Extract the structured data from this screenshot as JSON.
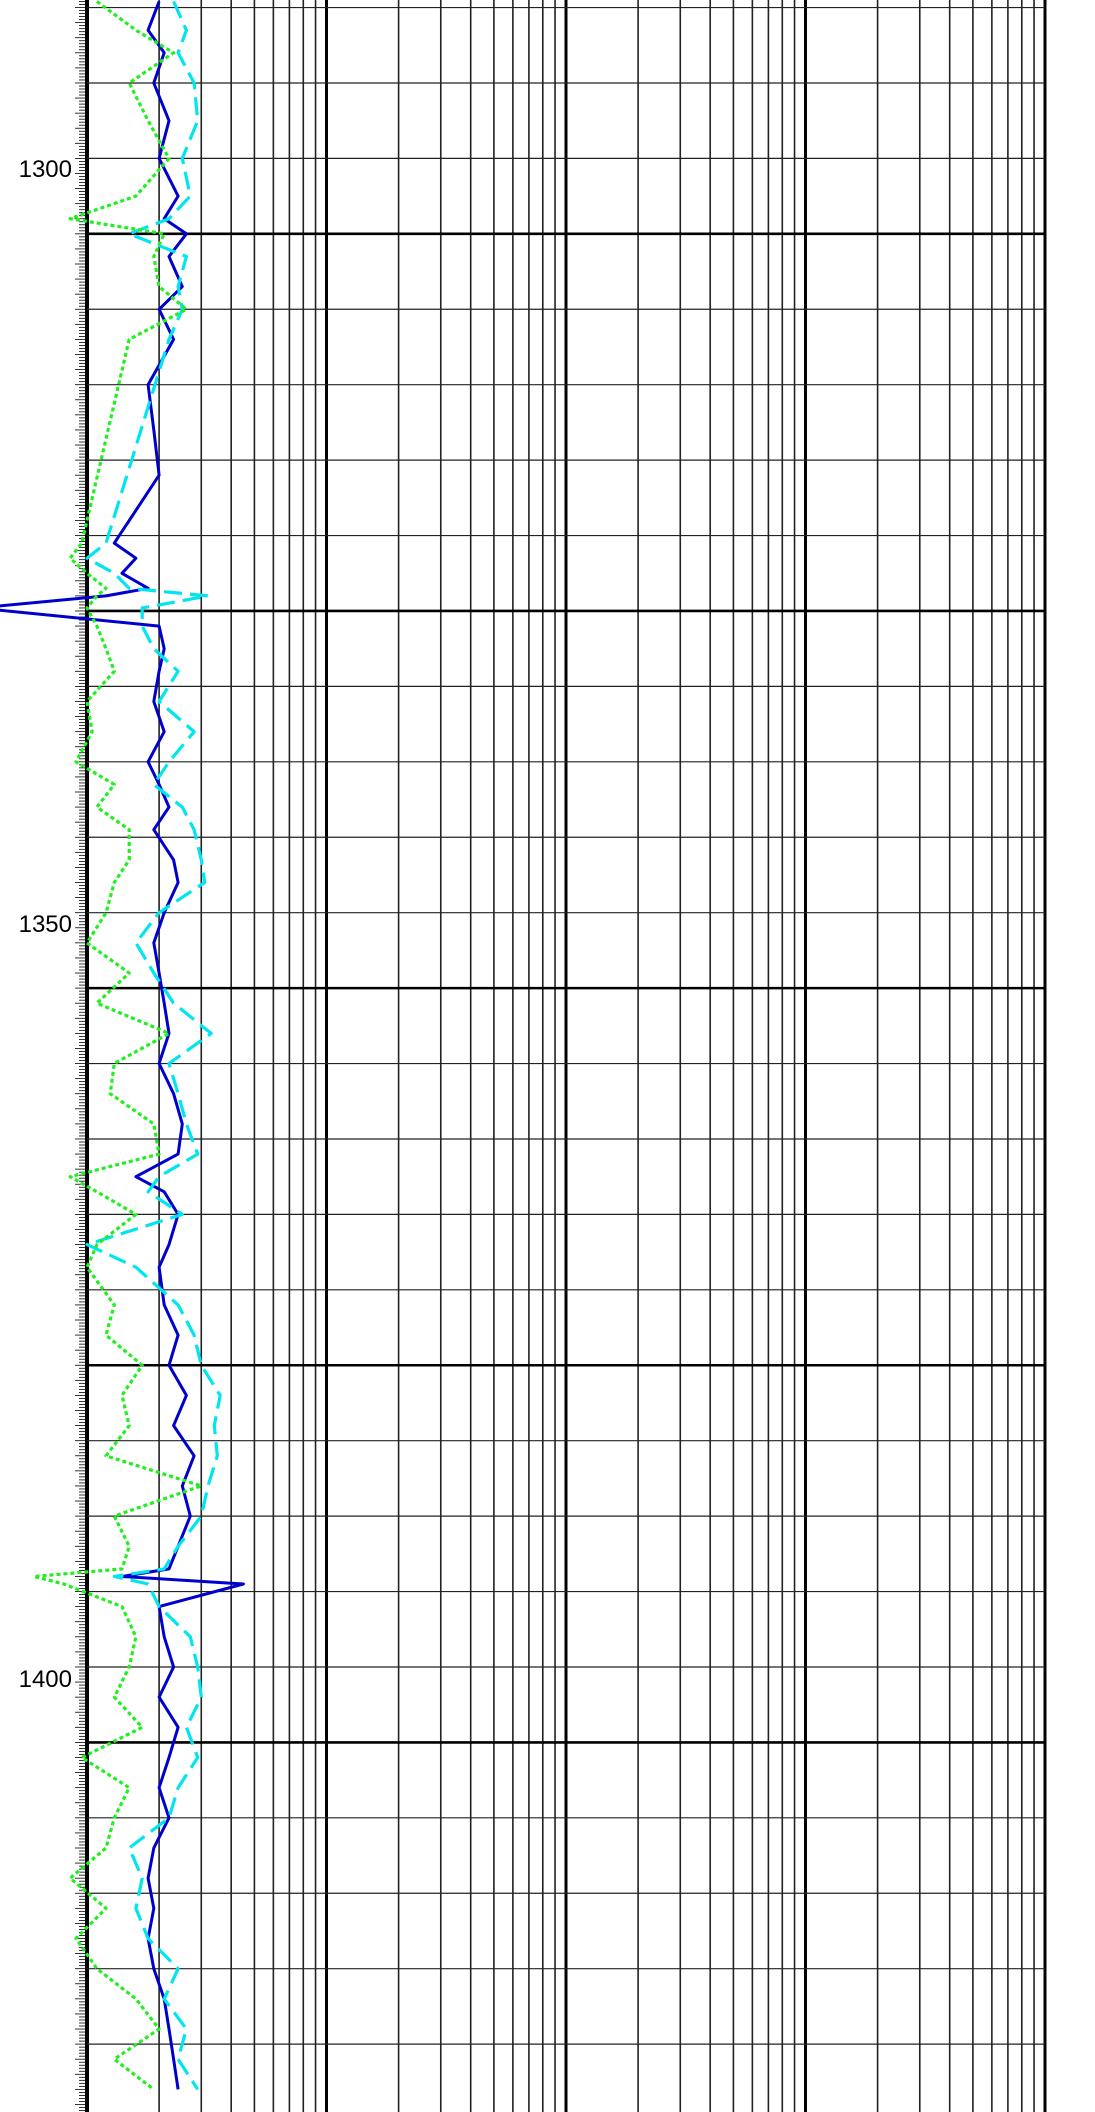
{
  "chart_data": {
    "type": "line",
    "title": "",
    "xlabel": "",
    "ylabel": "",
    "y_axis": "depth",
    "y_inverted": true,
    "ylim": [
      1284.5,
      1424.5
    ],
    "x_scale": "log",
    "decades": 4,
    "y_ticks": [
      1300,
      1350,
      1400
    ],
    "y_tick_labels": [
      "1300",
      "1350",
      "1400"
    ],
    "grid": true,
    "legend": "none",
    "series": [
      {
        "color": "#0000cc",
        "style": "solid",
        "points": [
          [
            1284.6,
            2.0
          ],
          [
            1286.5,
            1.8
          ],
          [
            1288.0,
            2.1
          ],
          [
            1290.0,
            1.9
          ],
          [
            1292.5,
            2.2
          ],
          [
            1295.0,
            2.0
          ],
          [
            1297.5,
            2.4
          ],
          [
            1299.0,
            2.1
          ],
          [
            1300.0,
            2.6
          ],
          [
            1301.5,
            2.2
          ],
          [
            1303.5,
            2.5
          ],
          [
            1305.0,
            2.0
          ],
          [
            1307.0,
            2.3
          ],
          [
            1310.0,
            1.8
          ],
          [
            1313.0,
            1.9
          ],
          [
            1316.0,
            2.0
          ],
          [
            1320.5,
            1.3
          ],
          [
            1321.5,
            1.6
          ],
          [
            1322.5,
            1.4
          ],
          [
            1323.5,
            1.8
          ],
          [
            1324.0,
            1.2
          ],
          [
            1324.8,
            0.35
          ],
          [
            1326.0,
            2.0
          ],
          [
            1327.5,
            2.1
          ],
          [
            1329.0,
            2.0
          ],
          [
            1331.0,
            1.9
          ],
          [
            1333.0,
            2.1
          ],
          [
            1335.0,
            1.8
          ],
          [
            1336.5,
            2.0
          ],
          [
            1338.0,
            2.2
          ],
          [
            1339.5,
            1.9
          ],
          [
            1341.5,
            2.3
          ],
          [
            1343.0,
            2.4
          ],
          [
            1345.0,
            2.1
          ],
          [
            1347.0,
            1.9
          ],
          [
            1349.0,
            2.0
          ],
          [
            1351.0,
            2.1
          ],
          [
            1353.0,
            2.2
          ],
          [
            1355.0,
            2.0
          ],
          [
            1357.0,
            2.3
          ],
          [
            1359.0,
            2.5
          ],
          [
            1361.0,
            2.4
          ],
          [
            1362.5,
            1.6
          ],
          [
            1363.5,
            2.1
          ],
          [
            1365.0,
            2.4
          ],
          [
            1367.0,
            2.2
          ],
          [
            1368.5,
            2.0
          ],
          [
            1371.0,
            2.1
          ],
          [
            1373.0,
            2.4
          ],
          [
            1375.0,
            2.2
          ],
          [
            1377.0,
            2.6
          ],
          [
            1379.0,
            2.3
          ],
          [
            1381.0,
            2.8
          ],
          [
            1383.0,
            2.5
          ],
          [
            1385.0,
            2.7
          ],
          [
            1387.0,
            2.4
          ],
          [
            1388.5,
            2.2
          ],
          [
            1389.0,
            1.4
          ],
          [
            1389.5,
            4.5
          ],
          [
            1391.0,
            2.0
          ],
          [
            1393.0,
            2.1
          ],
          [
            1395.0,
            2.3
          ],
          [
            1397.0,
            2.0
          ],
          [
            1399.0,
            2.4
          ],
          [
            1401.0,
            2.2
          ],
          [
            1403.0,
            2.0
          ],
          [
            1405.0,
            2.2
          ],
          [
            1407.0,
            1.9
          ],
          [
            1409.0,
            1.8
          ],
          [
            1411.0,
            1.9
          ],
          [
            1413.0,
            1.8
          ],
          [
            1415.0,
            1.9
          ],
          [
            1417.0,
            2.1
          ],
          [
            1419.0,
            2.2
          ],
          [
            1421.0,
            2.3
          ],
          [
            1423.0,
            2.4
          ]
        ]
      },
      {
        "color": "#00e5ee",
        "style": "dash",
        "points": [
          [
            1284.6,
            2.3
          ],
          [
            1286.5,
            2.6
          ],
          [
            1288.0,
            2.4
          ],
          [
            1290.0,
            2.8
          ],
          [
            1292.5,
            2.9
          ],
          [
            1295.0,
            2.5
          ],
          [
            1297.5,
            2.7
          ],
          [
            1299.0,
            2.2
          ],
          [
            1300.0,
            1.5
          ],
          [
            1301.5,
            2.6
          ],
          [
            1303.5,
            2.4
          ],
          [
            1305.0,
            2.5
          ],
          [
            1307.0,
            2.2
          ],
          [
            1320.5,
            1.2
          ],
          [
            1321.5,
            1.0
          ],
          [
            1322.5,
            1.3
          ],
          [
            1323.5,
            1.5
          ],
          [
            1324.0,
            3.2
          ],
          [
            1324.8,
            1.7
          ],
          [
            1326.0,
            1.7
          ],
          [
            1327.5,
            1.9
          ],
          [
            1329.0,
            2.4
          ],
          [
            1331.0,
            2.0
          ],
          [
            1333.0,
            2.8
          ],
          [
            1335.0,
            2.2
          ],
          [
            1336.5,
            1.9
          ],
          [
            1338.0,
            2.5
          ],
          [
            1339.5,
            2.8
          ],
          [
            1341.5,
            3.0
          ],
          [
            1343.0,
            3.1
          ],
          [
            1345.0,
            2.0
          ],
          [
            1347.0,
            1.6
          ],
          [
            1349.0,
            1.9
          ],
          [
            1351.0,
            2.3
          ],
          [
            1353.0,
            3.3
          ],
          [
            1355.0,
            2.2
          ],
          [
            1357.0,
            2.4
          ],
          [
            1359.0,
            2.6
          ],
          [
            1361.0,
            2.9
          ],
          [
            1362.5,
            2.0
          ],
          [
            1363.5,
            1.8
          ],
          [
            1365.0,
            2.5
          ],
          [
            1367.0,
            1.0
          ],
          [
            1368.5,
            1.6
          ],
          [
            1371.0,
            2.4
          ],
          [
            1373.0,
            2.8
          ],
          [
            1375.0,
            3.0
          ],
          [
            1377.0,
            3.6
          ],
          [
            1379.0,
            3.4
          ],
          [
            1381.0,
            3.5
          ],
          [
            1383.0,
            3.2
          ],
          [
            1385.0,
            3.0
          ],
          [
            1387.0,
            2.4
          ],
          [
            1388.5,
            2.1
          ],
          [
            1389.0,
            1.3
          ],
          [
            1389.5,
            1.8
          ],
          [
            1391.0,
            2.0
          ],
          [
            1393.0,
            2.7
          ],
          [
            1395.0,
            2.9
          ],
          [
            1397.0,
            3.0
          ],
          [
            1399.0,
            2.6
          ],
          [
            1401.0,
            2.9
          ],
          [
            1403.0,
            2.4
          ],
          [
            1405.0,
            2.2
          ],
          [
            1407.0,
            1.5
          ],
          [
            1409.0,
            1.7
          ],
          [
            1411.0,
            1.6
          ],
          [
            1413.0,
            1.8
          ],
          [
            1415.0,
            2.4
          ],
          [
            1417.0,
            2.1
          ],
          [
            1419.0,
            2.6
          ],
          [
            1421.0,
            2.4
          ],
          [
            1423.0,
            2.9
          ]
        ]
      },
      {
        "color": "#22ee22",
        "style": "dot",
        "points": [
          [
            1284.6,
            1.1
          ],
          [
            1286.5,
            1.6
          ],
          [
            1288.0,
            2.3
          ],
          [
            1290.0,
            1.5
          ],
          [
            1292.5,
            1.8
          ],
          [
            1295.0,
            2.2
          ],
          [
            1297.5,
            1.6
          ],
          [
            1299.0,
            0.85
          ],
          [
            1300.0,
            2.1
          ],
          [
            1301.5,
            1.9
          ],
          [
            1303.5,
            2.0
          ],
          [
            1305.0,
            2.6
          ],
          [
            1307.0,
            1.5
          ],
          [
            1320.5,
            0.95
          ],
          [
            1321.5,
            0.85
          ],
          [
            1322.5,
            1.0
          ],
          [
            1323.5,
            1.2
          ],
          [
            1324.0,
            1.1
          ],
          [
            1324.8,
            1.0
          ],
          [
            1326.0,
            1.1
          ],
          [
            1327.5,
            1.2
          ],
          [
            1329.0,
            1.3
          ],
          [
            1331.0,
            1.0
          ],
          [
            1333.0,
            1.05
          ],
          [
            1335.0,
            0.9
          ],
          [
            1336.5,
            1.3
          ],
          [
            1338.0,
            1.1
          ],
          [
            1339.5,
            1.5
          ],
          [
            1341.5,
            1.5
          ],
          [
            1343.0,
            1.3
          ],
          [
            1345.0,
            1.2
          ],
          [
            1347.0,
            1.0
          ],
          [
            1349.0,
            1.5
          ],
          [
            1351.0,
            1.1
          ],
          [
            1353.0,
            2.2
          ],
          [
            1355.0,
            1.3
          ],
          [
            1357.0,
            1.25
          ],
          [
            1359.0,
            1.9
          ],
          [
            1361.0,
            2.0
          ],
          [
            1362.5,
            0.85
          ],
          [
            1363.5,
            1.1
          ],
          [
            1365.0,
            1.6
          ],
          [
            1367.0,
            1.1
          ],
          [
            1368.5,
            1.0
          ],
          [
            1371.0,
            1.3
          ],
          [
            1373.0,
            1.2
          ],
          [
            1375.0,
            1.7
          ],
          [
            1377.0,
            1.4
          ],
          [
            1379.0,
            1.5
          ],
          [
            1381.0,
            1.2
          ],
          [
            1383.0,
            3.0
          ],
          [
            1385.0,
            1.3
          ],
          [
            1387.0,
            1.5
          ],
          [
            1388.5,
            1.4
          ],
          [
            1389.0,
            0.6
          ],
          [
            1389.5,
            0.8
          ],
          [
            1391.0,
            1.4
          ],
          [
            1393.0,
            1.6
          ],
          [
            1395.0,
            1.5
          ],
          [
            1397.0,
            1.3
          ],
          [
            1399.0,
            1.7
          ],
          [
            1401.0,
            0.95
          ],
          [
            1403.0,
            1.5
          ],
          [
            1405.0,
            1.3
          ],
          [
            1407.0,
            1.2
          ],
          [
            1409.0,
            0.85
          ],
          [
            1411.0,
            1.2
          ],
          [
            1413.0,
            0.9
          ],
          [
            1415.0,
            1.1
          ],
          [
            1417.0,
            1.6
          ],
          [
            1419.0,
            2.0
          ],
          [
            1421.0,
            1.3
          ],
          [
            1423.0,
            1.9
          ]
        ]
      }
    ]
  },
  "colors": {
    "grid_major": "#000000",
    "grid_minor": "#222222",
    "depth_label": "#000000"
  }
}
